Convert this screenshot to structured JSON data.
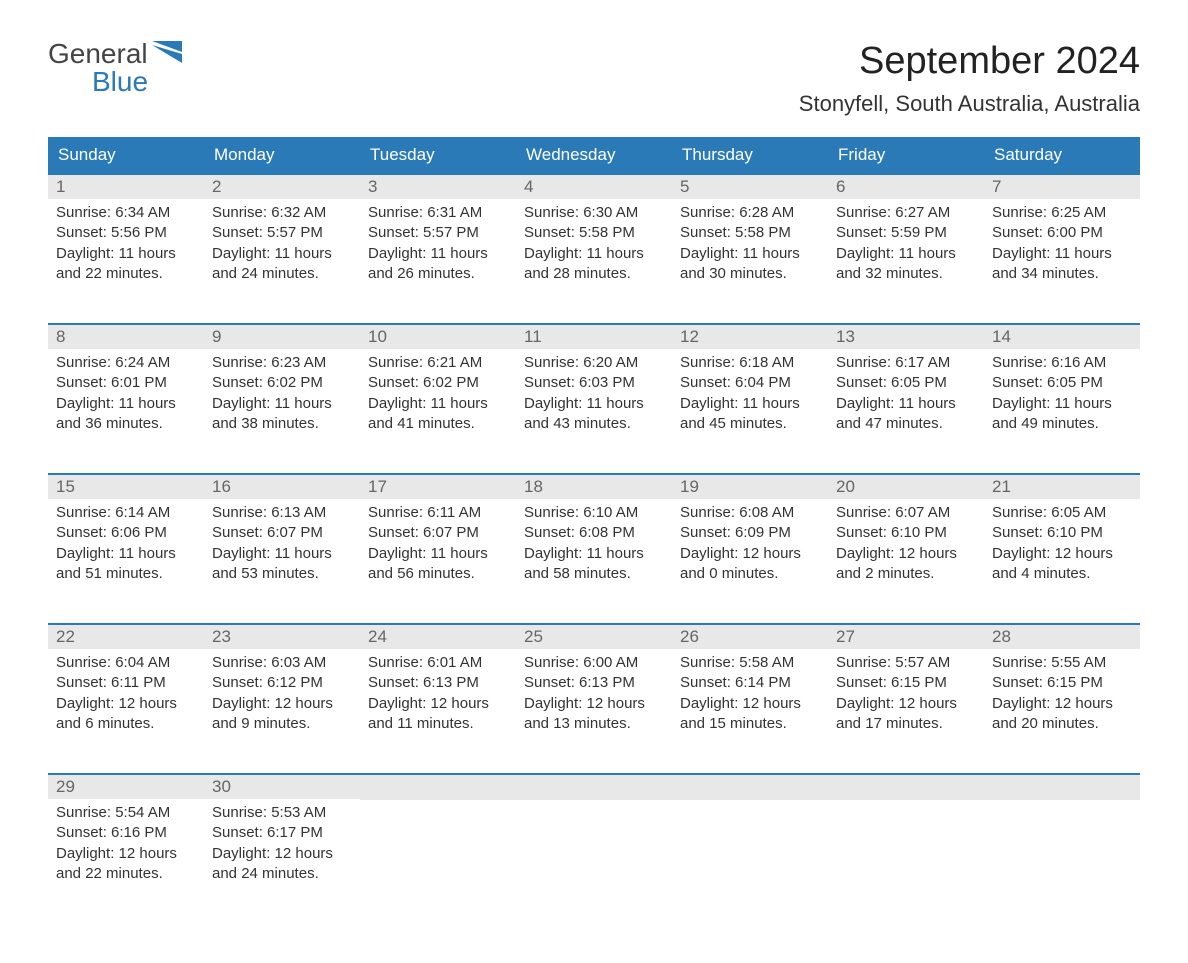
{
  "logo": {
    "text_top": "General",
    "text_bottom": "Blue",
    "color_top": "#444444",
    "color_bottom": "#2a7ab8",
    "shape_color": "#2a7ab8"
  },
  "header": {
    "month_title": "September 2024",
    "location": "Stonyfell, South Australia, Australia"
  },
  "colors": {
    "header_bg": "#2a7ab8",
    "header_text": "#ffffff",
    "day_number_bg": "#e8e8e8",
    "day_number_text": "#666666",
    "body_text": "#333333",
    "week_border": "#2a7ab8",
    "background": "#ffffff"
  },
  "day_names": [
    "Sunday",
    "Monday",
    "Tuesday",
    "Wednesday",
    "Thursday",
    "Friday",
    "Saturday"
  ],
  "weeks": [
    [
      {
        "num": "1",
        "sunrise": "Sunrise: 6:34 AM",
        "sunset": "Sunset: 5:56 PM",
        "daylight1": "Daylight: 11 hours",
        "daylight2": "and 22 minutes."
      },
      {
        "num": "2",
        "sunrise": "Sunrise: 6:32 AM",
        "sunset": "Sunset: 5:57 PM",
        "daylight1": "Daylight: 11 hours",
        "daylight2": "and 24 minutes."
      },
      {
        "num": "3",
        "sunrise": "Sunrise: 6:31 AM",
        "sunset": "Sunset: 5:57 PM",
        "daylight1": "Daylight: 11 hours",
        "daylight2": "and 26 minutes."
      },
      {
        "num": "4",
        "sunrise": "Sunrise: 6:30 AM",
        "sunset": "Sunset: 5:58 PM",
        "daylight1": "Daylight: 11 hours",
        "daylight2": "and 28 minutes."
      },
      {
        "num": "5",
        "sunrise": "Sunrise: 6:28 AM",
        "sunset": "Sunset: 5:58 PM",
        "daylight1": "Daylight: 11 hours",
        "daylight2": "and 30 minutes."
      },
      {
        "num": "6",
        "sunrise": "Sunrise: 6:27 AM",
        "sunset": "Sunset: 5:59 PM",
        "daylight1": "Daylight: 11 hours",
        "daylight2": "and 32 minutes."
      },
      {
        "num": "7",
        "sunrise": "Sunrise: 6:25 AM",
        "sunset": "Sunset: 6:00 PM",
        "daylight1": "Daylight: 11 hours",
        "daylight2": "and 34 minutes."
      }
    ],
    [
      {
        "num": "8",
        "sunrise": "Sunrise: 6:24 AM",
        "sunset": "Sunset: 6:01 PM",
        "daylight1": "Daylight: 11 hours",
        "daylight2": "and 36 minutes."
      },
      {
        "num": "9",
        "sunrise": "Sunrise: 6:23 AM",
        "sunset": "Sunset: 6:02 PM",
        "daylight1": "Daylight: 11 hours",
        "daylight2": "and 38 minutes."
      },
      {
        "num": "10",
        "sunrise": "Sunrise: 6:21 AM",
        "sunset": "Sunset: 6:02 PM",
        "daylight1": "Daylight: 11 hours",
        "daylight2": "and 41 minutes."
      },
      {
        "num": "11",
        "sunrise": "Sunrise: 6:20 AM",
        "sunset": "Sunset: 6:03 PM",
        "daylight1": "Daylight: 11 hours",
        "daylight2": "and 43 minutes."
      },
      {
        "num": "12",
        "sunrise": "Sunrise: 6:18 AM",
        "sunset": "Sunset: 6:04 PM",
        "daylight1": "Daylight: 11 hours",
        "daylight2": "and 45 minutes."
      },
      {
        "num": "13",
        "sunrise": "Sunrise: 6:17 AM",
        "sunset": "Sunset: 6:05 PM",
        "daylight1": "Daylight: 11 hours",
        "daylight2": "and 47 minutes."
      },
      {
        "num": "14",
        "sunrise": "Sunrise: 6:16 AM",
        "sunset": "Sunset: 6:05 PM",
        "daylight1": "Daylight: 11 hours",
        "daylight2": "and 49 minutes."
      }
    ],
    [
      {
        "num": "15",
        "sunrise": "Sunrise: 6:14 AM",
        "sunset": "Sunset: 6:06 PM",
        "daylight1": "Daylight: 11 hours",
        "daylight2": "and 51 minutes."
      },
      {
        "num": "16",
        "sunrise": "Sunrise: 6:13 AM",
        "sunset": "Sunset: 6:07 PM",
        "daylight1": "Daylight: 11 hours",
        "daylight2": "and 53 minutes."
      },
      {
        "num": "17",
        "sunrise": "Sunrise: 6:11 AM",
        "sunset": "Sunset: 6:07 PM",
        "daylight1": "Daylight: 11 hours",
        "daylight2": "and 56 minutes."
      },
      {
        "num": "18",
        "sunrise": "Sunrise: 6:10 AM",
        "sunset": "Sunset: 6:08 PM",
        "daylight1": "Daylight: 11 hours",
        "daylight2": "and 58 minutes."
      },
      {
        "num": "19",
        "sunrise": "Sunrise: 6:08 AM",
        "sunset": "Sunset: 6:09 PM",
        "daylight1": "Daylight: 12 hours",
        "daylight2": "and 0 minutes."
      },
      {
        "num": "20",
        "sunrise": "Sunrise: 6:07 AM",
        "sunset": "Sunset: 6:10 PM",
        "daylight1": "Daylight: 12 hours",
        "daylight2": "and 2 minutes."
      },
      {
        "num": "21",
        "sunrise": "Sunrise: 6:05 AM",
        "sunset": "Sunset: 6:10 PM",
        "daylight1": "Daylight: 12 hours",
        "daylight2": "and 4 minutes."
      }
    ],
    [
      {
        "num": "22",
        "sunrise": "Sunrise: 6:04 AM",
        "sunset": "Sunset: 6:11 PM",
        "daylight1": "Daylight: 12 hours",
        "daylight2": "and 6 minutes."
      },
      {
        "num": "23",
        "sunrise": "Sunrise: 6:03 AM",
        "sunset": "Sunset: 6:12 PM",
        "daylight1": "Daylight: 12 hours",
        "daylight2": "and 9 minutes."
      },
      {
        "num": "24",
        "sunrise": "Sunrise: 6:01 AM",
        "sunset": "Sunset: 6:13 PM",
        "daylight1": "Daylight: 12 hours",
        "daylight2": "and 11 minutes."
      },
      {
        "num": "25",
        "sunrise": "Sunrise: 6:00 AM",
        "sunset": "Sunset: 6:13 PM",
        "daylight1": "Daylight: 12 hours",
        "daylight2": "and 13 minutes."
      },
      {
        "num": "26",
        "sunrise": "Sunrise: 5:58 AM",
        "sunset": "Sunset: 6:14 PM",
        "daylight1": "Daylight: 12 hours",
        "daylight2": "and 15 minutes."
      },
      {
        "num": "27",
        "sunrise": "Sunrise: 5:57 AM",
        "sunset": "Sunset: 6:15 PM",
        "daylight1": "Daylight: 12 hours",
        "daylight2": "and 17 minutes."
      },
      {
        "num": "28",
        "sunrise": "Sunrise: 5:55 AM",
        "sunset": "Sunset: 6:15 PM",
        "daylight1": "Daylight: 12 hours",
        "daylight2": "and 20 minutes."
      }
    ],
    [
      {
        "num": "29",
        "sunrise": "Sunrise: 5:54 AM",
        "sunset": "Sunset: 6:16 PM",
        "daylight1": "Daylight: 12 hours",
        "daylight2": "and 22 minutes."
      },
      {
        "num": "30",
        "sunrise": "Sunrise: 5:53 AM",
        "sunset": "Sunset: 6:17 PM",
        "daylight1": "Daylight: 12 hours",
        "daylight2": "and 24 minutes."
      },
      null,
      null,
      null,
      null,
      null
    ]
  ]
}
